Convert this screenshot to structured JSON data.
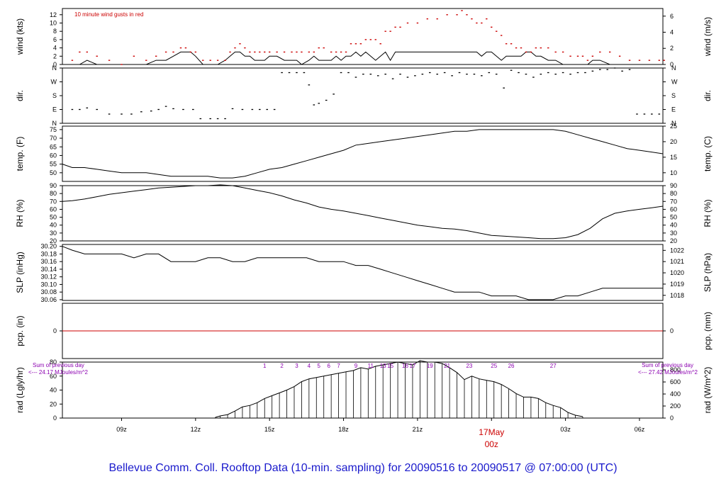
{
  "title": "Bellevue Comm. Coll. Rooftop Data (10-min. sampling) for 20090516  to  20090517 @ 07:00:00  (UTC)",
  "colors": {
    "gust": "#cc0000",
    "zeroline": "#cc0000",
    "date": "#cc0000",
    "rad_note": "#8b00b0",
    "footer": "#1a1acc",
    "trace": "#000000"
  },
  "chart_data": [
    {
      "type": "line",
      "name": "wind",
      "ylabel_left": "wind (kts)",
      "ylabel_right": "wind (m/s)",
      "annotation": "10  minute wind gusts in red",
      "ylim": [
        0,
        13.5
      ],
      "left_ticks": [
        0,
        2,
        4,
        6,
        8,
        10,
        12
      ],
      "right_ticks": [
        {
          "v": 0,
          "label": "0"
        },
        {
          "v": 3.89,
          "label": "2"
        },
        {
          "v": 7.78,
          "label": "4"
        },
        {
          "v": 11.66,
          "label": "6"
        }
      ],
      "x_hours": [
        7.0,
        7.3,
        7.6,
        8.0,
        8.5,
        9.0,
        9.5,
        10.0,
        10.4,
        10.8,
        11.1,
        11.4,
        11.6,
        11.8,
        12.0,
        12.3,
        12.6,
        12.9,
        13.2,
        13.4,
        13.6,
        13.8,
        14.0,
        14.2,
        14.4,
        14.6,
        14.8,
        15.0,
        15.3,
        15.6,
        15.9,
        16.1,
        16.3,
        16.6,
        16.8,
        17.0,
        17.2,
        17.5,
        17.7,
        17.9,
        18.1,
        18.3,
        18.5,
        18.7,
        18.9,
        19.1,
        19.3,
        19.5,
        19.7,
        19.9,
        20.1,
        20.3,
        20.6,
        21.0,
        21.4,
        21.8,
        22.2,
        22.6,
        22.8,
        23.0,
        23.2,
        23.4,
        23.6,
        23.8,
        24.0,
        24.2,
        24.4,
        24.6,
        24.8,
        25.0,
        25.2,
        25.4,
        25.6,
        25.8,
        26.0,
        26.3,
        26.6,
        26.9,
        27.2,
        27.5,
        27.7,
        27.9,
        28.1,
        28.4,
        28.8,
        29.2,
        29.6,
        30.0,
        30.4,
        30.8,
        31.0
      ],
      "wind_kts": [
        0,
        0,
        1,
        0,
        0,
        0,
        0,
        0,
        1,
        1,
        2,
        3,
        3,
        3,
        2,
        0,
        0,
        0,
        1,
        2,
        3,
        3,
        2,
        2,
        1,
        1,
        1,
        2,
        2,
        1,
        1,
        1,
        0,
        1,
        2,
        1,
        1,
        1,
        2,
        1,
        2,
        2,
        3,
        2,
        3,
        2,
        1,
        2,
        3,
        1,
        3,
        3,
        3,
        3,
        3,
        3,
        3,
        3,
        3,
        3,
        3,
        3,
        2,
        3,
        3,
        2,
        1,
        2,
        2,
        2,
        2,
        3,
        3,
        2,
        2,
        1,
        1,
        0,
        0,
        0,
        0,
        0,
        1,
        1,
        0,
        0,
        0,
        0,
        0,
        0,
        0
      ],
      "gust_kts": [
        1,
        3,
        3,
        2,
        1,
        0,
        2,
        1,
        2,
        3,
        3,
        4,
        4,
        3,
        3,
        1,
        1,
        1,
        1,
        3,
        4,
        5,
        4,
        3,
        3,
        3,
        3,
        3,
        3,
        3,
        3,
        3,
        3,
        3,
        3,
        4,
        4,
        3,
        3,
        3,
        3,
        5,
        5,
        5,
        6,
        6,
        6,
        5,
        8,
        8,
        9,
        9,
        10,
        10,
        11,
        11,
        12,
        12,
        13,
        12,
        11,
        10,
        10,
        11,
        9,
        8,
        7,
        5,
        5,
        4,
        4,
        3,
        3,
        4,
        4,
        4,
        3,
        3,
        2,
        2,
        2,
        1,
        2,
        3,
        3,
        2,
        1,
        1,
        1,
        1,
        1
      ],
      "x_ticks": [
        {
          "h": 9,
          "label": "09z"
        },
        {
          "h": 12,
          "label": "12z"
        },
        {
          "h": 15,
          "label": "15z"
        },
        {
          "h": 18,
          "label": "18z"
        },
        {
          "h": 21,
          "label": "21z"
        },
        {
          "h": 24,
          "label": "00z"
        },
        {
          "h": 27,
          "label": "03z"
        },
        {
          "h": 30,
          "label": "06z"
        }
      ],
      "x_range_hours": [
        6.6,
        30.95
      ],
      "date_label": {
        "line1": "17May",
        "line2": "00z"
      }
    },
    {
      "type": "scatter",
      "name": "direction",
      "ylabel_left": "dir.",
      "ylabel_right": "dir.",
      "ylim": [
        0,
        360
      ],
      "tick_labels": [
        "N",
        "E",
        "S",
        "W",
        "N"
      ],
      "x_hours": [
        7.0,
        7.3,
        7.6,
        8.0,
        8.5,
        9.0,
        9.4,
        9.8,
        10.2,
        10.5,
        10.8,
        11.1,
        11.5,
        11.9,
        12.2,
        12.6,
        12.9,
        13.2,
        13.5,
        13.9,
        14.3,
        14.6,
        14.9,
        15.2,
        15.5,
        15.8,
        16.1,
        16.4,
        16.6,
        16.8,
        17.0,
        17.3,
        17.6,
        17.9,
        18.2,
        18.5,
        18.8,
        19.1,
        19.4,
        19.7,
        20.0,
        20.3,
        20.6,
        20.9,
        21.2,
        21.5,
        21.8,
        22.1,
        22.4,
        22.7,
        23.0,
        23.3,
        23.6,
        23.9,
        24.2,
        24.5,
        24.8,
        25.1,
        25.4,
        25.7,
        26.0,
        26.3,
        26.6,
        26.9,
        27.2,
        27.5,
        27.8,
        28.1,
        28.4,
        28.7,
        29.0,
        29.3,
        29.6,
        29.9,
        30.2,
        30.5,
        30.8
      ],
      "deg": [
        90,
        90,
        100,
        90,
        60,
        60,
        60,
        75,
        80,
        90,
        110,
        95,
        90,
        90,
        30,
        30,
        30,
        30,
        95,
        90,
        90,
        90,
        90,
        90,
        330,
        330,
        330,
        330,
        250,
        120,
        130,
        150,
        190,
        330,
        330,
        300,
        320,
        320,
        310,
        320,
        290,
        320,
        300,
        310,
        320,
        330,
        320,
        330,
        310,
        330,
        320,
        320,
        310,
        330,
        320,
        230,
        345,
        330,
        320,
        300,
        320,
        330,
        320,
        330,
        320,
        330,
        330,
        340,
        350,
        350,
        360,
        340,
        350,
        60,
        60,
        60,
        60
      ]
    },
    {
      "type": "line",
      "name": "temperature",
      "ylabel_left": "temp. (F)",
      "ylabel_right": "temp. (C)",
      "ylim": [
        45,
        77
      ],
      "left_ticks": [
        50,
        55,
        60,
        65,
        70,
        75
      ],
      "right_ticks": [
        {
          "v": 50,
          "label": "10"
        },
        {
          "v": 59,
          "label": "15"
        },
        {
          "v": 68,
          "label": "20"
        },
        {
          "v": 77,
          "label": "25"
        }
      ],
      "x_hours": [
        6.6,
        7.0,
        7.5,
        8.0,
        8.5,
        9.0,
        9.5,
        10.0,
        10.5,
        11.0,
        11.5,
        12.0,
        12.5,
        13.0,
        13.5,
        14.0,
        14.5,
        15.0,
        15.5,
        16.0,
        16.5,
        17.0,
        17.5,
        18.0,
        18.5,
        19.0,
        19.5,
        20.0,
        20.5,
        21.0,
        21.5,
        22.0,
        22.5,
        23.0,
        23.5,
        24.0,
        24.5,
        25.0,
        25.5,
        26.0,
        26.5,
        27.0,
        27.5,
        28.0,
        28.5,
        29.0,
        29.5,
        30.0,
        30.5,
        30.95
      ],
      "values": [
        55,
        53,
        53,
        52,
        51,
        50,
        50,
        50,
        49,
        48,
        48,
        48,
        48,
        47,
        47,
        48,
        50,
        52,
        53,
        55,
        57,
        59,
        61,
        63,
        66,
        67,
        68,
        69,
        70,
        71,
        72,
        73,
        74,
        74,
        75,
        75,
        75,
        75,
        75,
        75,
        75,
        74,
        72,
        70,
        68,
        66,
        64,
        63,
        62,
        61
      ]
    },
    {
      "type": "line",
      "name": "relative_humidity",
      "ylabel_left": "RH (%)",
      "ylabel_right": "RH (%)",
      "ylim": [
        20,
        90
      ],
      "left_ticks": [
        20,
        30,
        40,
        50,
        60,
        70,
        80,
        90
      ],
      "right_ticks": [
        20,
        30,
        40,
        50,
        60,
        70,
        80,
        90
      ],
      "x_hours": [
        6.6,
        7.0,
        7.5,
        8.0,
        8.5,
        9.0,
        9.5,
        10.0,
        10.5,
        11.0,
        11.5,
        12.0,
        12.5,
        13.0,
        13.5,
        14.0,
        14.5,
        15.0,
        15.5,
        16.0,
        16.5,
        17.0,
        17.5,
        18.0,
        18.5,
        19.0,
        19.5,
        20.0,
        20.5,
        21.0,
        21.5,
        22.0,
        22.5,
        23.0,
        23.5,
        24.0,
        24.5,
        25.0,
        25.5,
        26.0,
        26.5,
        27.0,
        27.5,
        28.0,
        28.5,
        29.0,
        29.5,
        30.0,
        30.5,
        30.95
      ],
      "values": [
        70,
        71,
        73,
        76,
        79,
        81,
        83,
        85,
        87,
        88,
        89,
        90,
        90,
        91,
        90,
        87,
        84,
        81,
        77,
        72,
        68,
        63,
        60,
        58,
        55,
        52,
        49,
        46,
        43,
        40,
        38,
        36,
        35,
        33,
        30,
        27,
        26,
        25,
        24,
        23,
        23,
        24,
        28,
        36,
        48,
        55,
        58,
        60,
        62,
        64
      ]
    },
    {
      "type": "line",
      "name": "sea_level_pressure",
      "ylabel_left": "SLP (inHg)",
      "ylabel_right": "SLP (hPa)",
      "ylim": [
        30.058,
        30.205
      ],
      "left_ticks": [
        30.06,
        30.08,
        30.1,
        30.12,
        30.14,
        30.16,
        30.18,
        30.2
      ],
      "left_tick_labels": [
        "30.06",
        "30.08",
        "30.10",
        "30.12",
        "30.14",
        "30.16",
        "30.18",
        "30.20"
      ],
      "right_ticks": [
        {
          "v": 30.0714,
          "label": "1018"
        },
        {
          "v": 30.1009,
          "label": "1019"
        },
        {
          "v": 30.1305,
          "label": "1020"
        },
        {
          "v": 30.16,
          "label": "1021"
        },
        {
          "v": 30.1895,
          "label": "1022"
        }
      ],
      "x_hours": [
        6.6,
        7.0,
        7.5,
        8.0,
        8.5,
        9.0,
        9.5,
        10.0,
        10.5,
        11.0,
        11.5,
        12.0,
        12.5,
        13.0,
        13.5,
        14.0,
        14.5,
        15.0,
        15.5,
        16.0,
        16.5,
        17.0,
        17.5,
        18.0,
        18.5,
        19.0,
        19.5,
        20.0,
        20.5,
        21.0,
        21.5,
        22.0,
        22.5,
        23.0,
        23.5,
        24.0,
        24.5,
        25.0,
        25.5,
        26.0,
        26.5,
        27.0,
        27.5,
        28.0,
        28.5,
        29.0,
        29.5,
        30.0,
        30.5,
        30.95
      ],
      "values": [
        30.2,
        30.19,
        30.18,
        30.18,
        30.18,
        30.18,
        30.17,
        30.18,
        30.18,
        30.16,
        30.16,
        30.16,
        30.17,
        30.17,
        30.16,
        30.16,
        30.17,
        30.17,
        30.17,
        30.17,
        30.17,
        30.16,
        30.16,
        30.16,
        30.15,
        30.15,
        30.14,
        30.13,
        30.12,
        30.11,
        30.1,
        30.09,
        30.08,
        30.08,
        30.08,
        30.07,
        30.07,
        30.07,
        30.06,
        30.06,
        30.06,
        30.07,
        30.07,
        30.08,
        30.09,
        30.09,
        30.09,
        30.09,
        30.09,
        30.09
      ]
    },
    {
      "type": "line",
      "name": "precipitation",
      "ylabel_left": "pcp. (in)",
      "ylabel_right": "pcp. (mm)",
      "ylim": [
        -1,
        1
      ],
      "left_ticks": [
        {
          "v": 0,
          "label": "0"
        }
      ],
      "right_ticks": [
        {
          "v": 0,
          "label": "0"
        }
      ],
      "x_hours": [
        6.6,
        30.95
      ],
      "values": [
        0,
        0
      ]
    },
    {
      "type": "bar",
      "name": "solar_radiation",
      "ylabel_left": "rad (Lgly/hr)",
      "ylabel_right": "rad (W/m^2)",
      "ylim": [
        0,
        80
      ],
      "left_ticks": [
        0,
        20,
        40,
        60,
        80
      ],
      "right_ticks": [
        {
          "v": 0,
          "label": "0"
        },
        {
          "v": 17.2,
          "label": "200"
        },
        {
          "v": 34.4,
          "label": "400"
        },
        {
          "v": 51.6,
          "label": "600"
        },
        {
          "v": 68.8,
          "label": "800"
        }
      ],
      "note_left": [
        "Sum of previous day",
        "<--- 24.17 MJoules/m^2"
      ],
      "note_right": [
        "Sum of previous day",
        "<--- 27.42 MJoules/m^2"
      ],
      "marker_labels": [
        {
          "h": 14.8,
          "label": "1"
        },
        {
          "h": 15.5,
          "label": "2"
        },
        {
          "h": 16.1,
          "label": "3"
        },
        {
          "h": 16.6,
          "label": "4"
        },
        {
          "h": 17.0,
          "label": "5"
        },
        {
          "h": 17.4,
          "label": "6"
        },
        {
          "h": 17.8,
          "label": "7"
        },
        {
          "h": 18.5,
          "label": "9"
        },
        {
          "h": 19.1,
          "label": "11"
        },
        {
          "h": 19.6,
          "label": "13"
        },
        {
          "h": 19.9,
          "label": "15"
        },
        {
          "h": 20.5,
          "label": "16"
        },
        {
          "h": 20.8,
          "label": "17"
        },
        {
          "h": 21.5,
          "label": "19"
        },
        {
          "h": 22.2,
          "label": "21"
        },
        {
          "h": 23.1,
          "label": "23"
        },
        {
          "h": 24.1,
          "label": "25"
        },
        {
          "h": 24.8,
          "label": "26"
        },
        {
          "h": 26.5,
          "label": "27"
        }
      ],
      "x_hours": [
        12.8,
        13.0,
        13.3,
        13.6,
        13.9,
        14.2,
        14.5,
        14.8,
        15.1,
        15.4,
        15.7,
        16.0,
        16.3,
        16.6,
        16.9,
        17.2,
        17.5,
        17.8,
        18.1,
        18.4,
        18.7,
        19.0,
        19.3,
        19.6,
        19.9,
        20.2,
        20.5,
        20.8,
        21.1,
        21.4,
        21.7,
        22.0,
        22.3,
        22.6,
        22.9,
        23.2,
        23.5,
        23.8,
        24.1,
        24.4,
        24.7,
        25.0,
        25.3,
        25.6,
        25.9,
        26.2,
        26.5,
        26.8,
        27.1,
        27.4,
        27.7
      ],
      "values": [
        1,
        3,
        5,
        10,
        16,
        18,
        22,
        28,
        32,
        36,
        40,
        45,
        52,
        56,
        58,
        60,
        62,
        64,
        66,
        68,
        72,
        70,
        74,
        76,
        78,
        80,
        78,
        76,
        82,
        80,
        80,
        78,
        72,
        65,
        55,
        60,
        56,
        54,
        52,
        48,
        42,
        35,
        30,
        30,
        28,
        22,
        18,
        15,
        8,
        4,
        2
      ]
    }
  ]
}
